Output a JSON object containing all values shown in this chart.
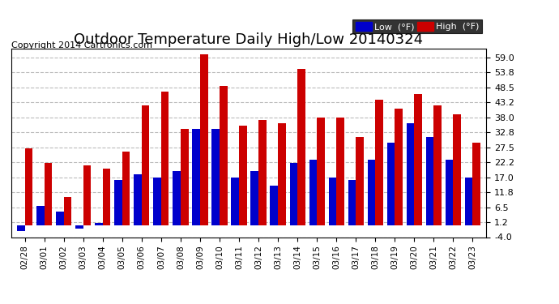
{
  "title": "Outdoor Temperature Daily High/Low 20140324",
  "copyright": "Copyright 2014 Cartronics.com",
  "dates": [
    "02/28",
    "03/01",
    "03/02",
    "03/03",
    "03/04",
    "03/05",
    "03/06",
    "03/07",
    "03/08",
    "03/09",
    "03/10",
    "03/11",
    "03/12",
    "03/13",
    "03/14",
    "03/15",
    "03/16",
    "03/17",
    "03/18",
    "03/19",
    "03/20",
    "03/21",
    "03/22",
    "03/23"
  ],
  "low": [
    -2,
    7,
    5,
    -1,
    1,
    16,
    18,
    17,
    19,
    34,
    34,
    17,
    19,
    14,
    22,
    23,
    17,
    16,
    23,
    29,
    36,
    31,
    23,
    17
  ],
  "high": [
    27,
    22,
    10,
    21,
    20,
    26,
    42,
    47,
    34,
    60,
    49,
    35,
    37,
    36,
    55,
    38,
    38,
    31,
    44,
    41,
    46,
    42,
    39,
    29
  ],
  "ylim": [
    -4,
    62
  ],
  "yticks": [
    -4.0,
    1.2,
    6.5,
    11.8,
    17.0,
    22.2,
    27.5,
    32.8,
    38.0,
    43.2,
    48.5,
    53.8,
    59.0
  ],
  "low_color": "#0000cc",
  "high_color": "#cc0000",
  "bg_color": "#ffffff",
  "grid_color": "#bbbbbb",
  "title_fontsize": 13,
  "copyright_fontsize": 8,
  "bar_width": 0.4
}
